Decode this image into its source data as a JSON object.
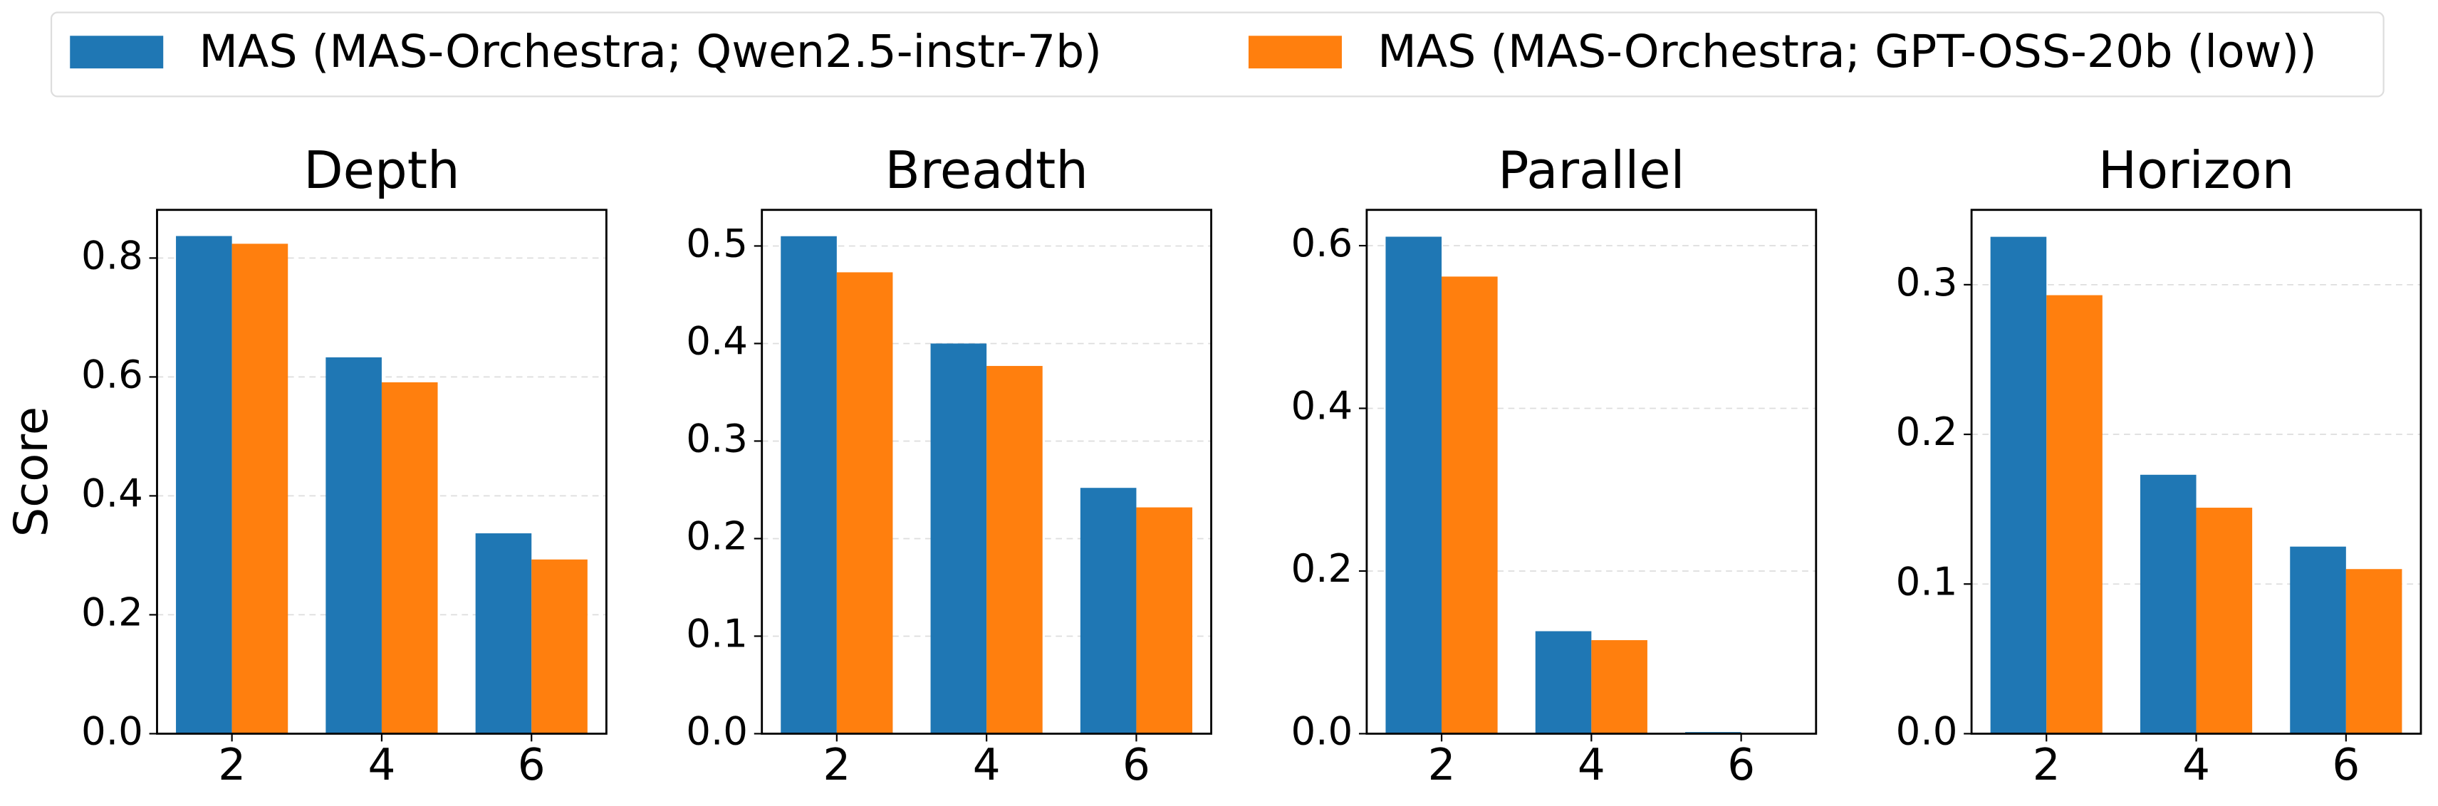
{
  "chart_data": [
    {
      "type": "bar",
      "title": "Depth",
      "ylabel": "Score",
      "categories": [
        "2",
        "4",
        "6"
      ],
      "series": [
        {
          "name": "MAS (MAS-Orchestra; Qwen2.5-instr-7b)",
          "color": "#1f77b4",
          "values": [
            0.837,
            0.633,
            0.337
          ]
        },
        {
          "name": "MAS (MAS-Orchestra; GPT-OSS-20b (low))",
          "color": "#ff7f0e",
          "values": [
            0.824,
            0.591,
            0.293
          ]
        }
      ],
      "ylim": [
        0,
        0.881
      ],
      "yticks": [
        0.0,
        0.2,
        0.4,
        0.6,
        0.8
      ],
      "grid": true
    },
    {
      "type": "bar",
      "title": "Breadth",
      "categories": [
        "2",
        "4",
        "6"
      ],
      "series": [
        {
          "color": "#1f77b4",
          "values": [
            0.51,
            0.4,
            0.252
          ]
        },
        {
          "color": "#ff7f0e",
          "values": [
            0.473,
            0.377,
            0.232
          ]
        }
      ],
      "ylim": [
        0,
        0.537
      ],
      "yticks": [
        0.0,
        0.1,
        0.2,
        0.3,
        0.4,
        0.5
      ],
      "grid": true
    },
    {
      "type": "bar",
      "title": "Parallel",
      "categories": [
        "2",
        "4",
        "6"
      ],
      "series": [
        {
          "color": "#1f77b4",
          "values": [
            0.611,
            0.126,
            0.002
          ]
        },
        {
          "color": "#ff7f0e",
          "values": [
            0.562,
            0.115,
            0.001
          ]
        }
      ],
      "ylim": [
        0,
        0.644
      ],
      "yticks": [
        0.0,
        0.2,
        0.4,
        0.6
      ],
      "grid": true
    },
    {
      "type": "bar",
      "title": "Horizon",
      "categories": [
        "2",
        "4",
        "6"
      ],
      "series": [
        {
          "color": "#1f77b4",
          "values": [
            0.332,
            0.173,
            0.125
          ]
        },
        {
          "color": "#ff7f0e",
          "values": [
            0.293,
            0.151,
            0.11
          ]
        }
      ],
      "ylim": [
        0,
        0.35
      ],
      "yticks": [
        0.0,
        0.1,
        0.2,
        0.3
      ],
      "grid": true
    }
  ]
}
